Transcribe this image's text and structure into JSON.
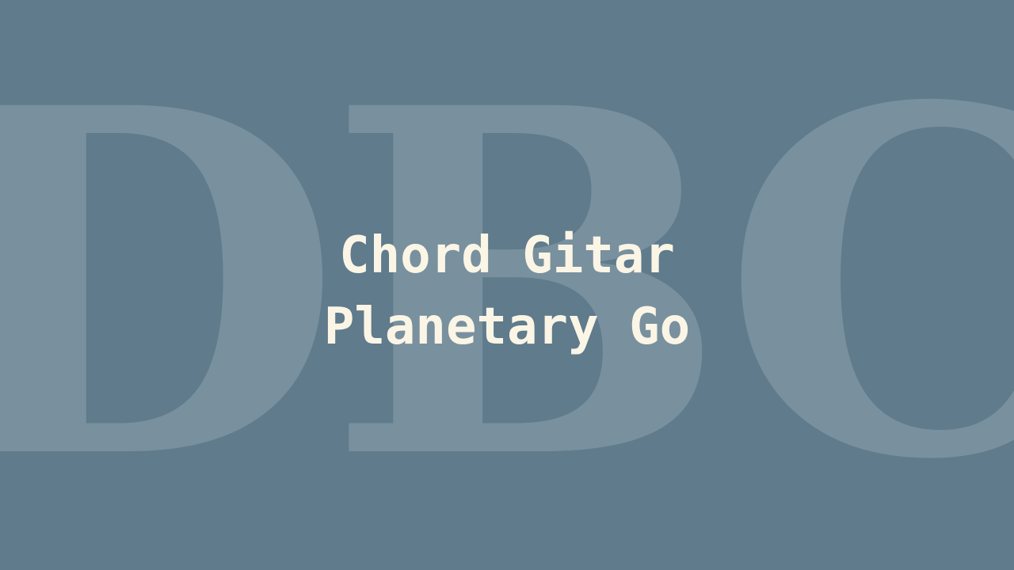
{
  "watermark": {
    "text": "DBC"
  },
  "title": {
    "line1": "Chord Gitar",
    "line2": "Planetary Go"
  },
  "colors": {
    "background": "#5f7b8c",
    "title_text": "#fbf5e6",
    "watermark": "#ffffff"
  }
}
